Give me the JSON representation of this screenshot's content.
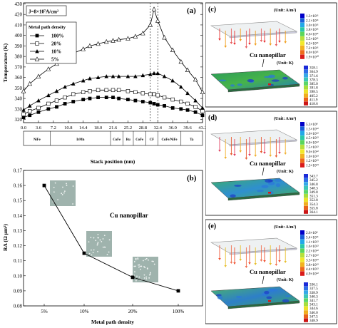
{
  "chart_data": [
    {
      "panel_label": "(a)",
      "type": "line",
      "ylabel": "Temperature (K)",
      "xlabel": "Stack position (nm)",
      "annotation": "J=8×10⁷A/cm²",
      "legend_title": "Metal path density",
      "legend_position": "top-left",
      "xlim": [
        0,
        43.2
      ],
      "ylim": [
        317,
        431
      ],
      "xticks": [
        "0.0",
        "3.6",
        "7.2",
        "10.8",
        "14.4",
        "18.0",
        "21.6",
        "25.2",
        "28.8",
        "32.4",
        "36.0",
        "39.6",
        "43.2"
      ],
      "yticks": [
        320,
        330,
        340,
        350,
        360,
        370,
        380,
        390,
        400,
        410,
        420,
        430
      ],
      "layers": [
        "NiFe",
        "IrMn",
        "CoFe",
        "Ru",
        "CoFe",
        "CF",
        "CoFe/NiFe",
        "Ta"
      ],
      "dashed_x": [
        30.6,
        32.4
      ],
      "series": [
        {
          "name": "100%",
          "marker": "filled-square",
          "x": [
            0,
            1.5,
            3.6,
            6,
            8,
            10,
            12,
            14.4,
            16,
            18,
            20,
            21.6,
            23,
            25.2,
            27,
            28.8,
            30.6,
            31.5,
            32.4,
            34,
            36,
            38,
            39.6,
            41.5,
            43.2
          ],
          "y": [
            322,
            324,
            327,
            330,
            332,
            335,
            337,
            339,
            340,
            341,
            341,
            341,
            340,
            339,
            338,
            337,
            336,
            335,
            334,
            333,
            331,
            330,
            329,
            327,
            324
          ]
        },
        {
          "name": "20%",
          "marker": "open-square",
          "x": [
            0,
            1.5,
            3.6,
            6,
            8,
            10,
            12,
            14.4,
            16,
            18,
            20,
            21.6,
            23,
            25.2,
            27,
            28.8,
            30.6,
            31.5,
            32.4,
            34,
            36,
            38,
            39.6,
            41.5,
            43.2
          ],
          "y": [
            325,
            328,
            331,
            335,
            338,
            341,
            344,
            346,
            347,
            348,
            348,
            348,
            348,
            347,
            346,
            345,
            344,
            344,
            343,
            341,
            339,
            337,
            335,
            332,
            328
          ]
        },
        {
          "name": "10%",
          "marker": "filled-triangle",
          "x": [
            0,
            1.5,
            3.6,
            6,
            8,
            10,
            12,
            14.4,
            16,
            18,
            20,
            21.6,
            23,
            25.2,
            27,
            28.8,
            30.6,
            31.5,
            32.4,
            34,
            36,
            38,
            39.6,
            41.5,
            43.2
          ],
          "y": [
            329,
            333,
            338,
            343,
            347,
            351,
            354,
            357,
            359,
            360,
            361,
            361,
            361,
            361,
            361,
            362,
            363,
            364,
            364,
            361,
            357,
            351,
            345,
            338,
            331
          ]
        },
        {
          "name": "5%",
          "marker": "open-triangle",
          "x": [
            0,
            1.5,
            3.6,
            6,
            8,
            10,
            12,
            14.4,
            16,
            18,
            20,
            21.6,
            23,
            25.2,
            27,
            28.8,
            30.6,
            31.5,
            32.4,
            34,
            36,
            38,
            39.6,
            41.5,
            43.2
          ],
          "y": [
            347,
            354,
            361,
            368,
            373,
            379,
            383,
            387,
            390,
            392,
            394,
            395,
            396,
            397,
            399,
            402,
            410,
            425,
            414,
            398,
            386,
            375,
            367,
            358,
            346
          ]
        }
      ]
    },
    {
      "panel_label": "(b)",
      "type": "line",
      "ylabel": "RA (Ω μm²)",
      "xlabel": "Metal path density",
      "annotation": "Cu nanopillar",
      "categories": [
        "5%",
        "10%",
        "20%",
        "100%"
      ],
      "values": [
        0.16,
        0.115,
        0.099,
        0.09
      ],
      "ylim": [
        0.08,
        0.17
      ],
      "yticks": [
        "0.08",
        "0.09",
        "0.10",
        "0.11",
        "0.12",
        "0.13",
        "0.14",
        "0.15",
        "0.16",
        "0.17"
      ]
    },
    {
      "panel_label": "(c)",
      "type": "heatmap",
      "current_unit": "(Unit: A/m²)",
      "current_scale": [
        "1.3×10¹¹",
        "2.1×10¹¹",
        "3.0×10¹¹",
        "3.8×10¹¹",
        "4.6×10¹¹",
        "5.5×10¹¹",
        "6.3×10¹¹",
        "7.2×10¹¹",
        "8.0×10¹¹",
        "1.9×10¹⁰"
      ],
      "label": "Cu nanopillar",
      "temp_unit": "(Unit: K)",
      "temp_scale": [
        "358.1",
        "364.9",
        "371.6",
        "378.3",
        "385.0",
        "391.8",
        "398.5",
        "405.2",
        "411.9",
        "418.6"
      ]
    },
    {
      "panel_label": "(d)",
      "type": "heatmap",
      "current_unit": "(Unit: A/m²)",
      "current_scale": [
        "5.3×10⁸",
        "1.5×10¹²",
        "3.0×10¹²",
        "4.5×10¹²",
        "6.0×10¹²",
        "7.5×10¹²",
        "9.0×10¹²",
        "1.0×10¹³",
        "1.2×10¹³",
        "1.3×10¹³"
      ],
      "label": "Cu nanopillar",
      "temp_unit": "(Unit: K)",
      "temp_scale": [
        "343.7",
        "345.2",
        "346.8",
        "348.3",
        "349.8",
        "351.3",
        "352.8",
        "354.3",
        "355.8",
        "364.1"
      ]
    },
    {
      "panel_label": "(e)",
      "type": "heatmap",
      "current_unit": "(Unit: A/m²)",
      "current_scale": [
        "2.6×10⁸",
        "5.4×10¹¹",
        "1.1×10¹²",
        "1.6×10¹²",
        "2.2×10¹²",
        "2.7×10¹²",
        "3.3×10¹²",
        "3.8×10¹²",
        "4.4×10¹²",
        "4.9×10¹²"
      ],
      "label": "Cu nanopillar",
      "temp_unit": "(Unit: K)",
      "temp_scale": [
        "336.1",
        "337.5",
        "338.9",
        "340.3",
        "341.7",
        "343.1",
        "344.6",
        "346.0",
        "347.5",
        "348.9"
      ]
    }
  ]
}
